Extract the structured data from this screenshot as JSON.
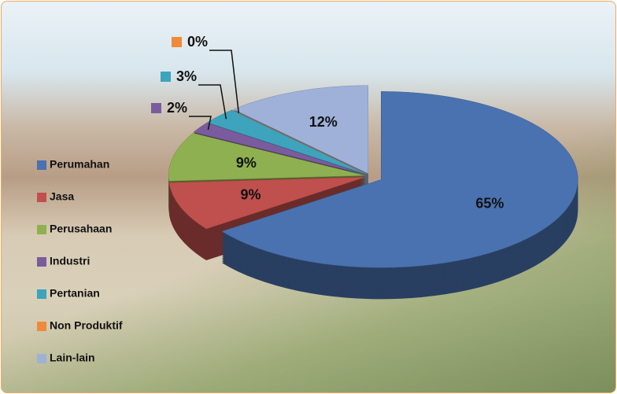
{
  "chart_data": {
    "type": "pie",
    "categories": [
      "Perumahan",
      "Jasa",
      "Perusahaan",
      "Industri",
      "Pertanian",
      "Non Produktif",
      "Lain-lain"
    ],
    "values": [
      65,
      9,
      9,
      2,
      3,
      0,
      12
    ],
    "value_labels": [
      "65%",
      "9%",
      "9%",
      "2%",
      "3%",
      "0%",
      "12%"
    ],
    "colors": [
      "#4a72b0",
      "#c0504d",
      "#8fb050",
      "#7a5c9e",
      "#3ea3bd",
      "#f08a3a",
      "#9fb1d9"
    ],
    "legend": "left"
  }
}
